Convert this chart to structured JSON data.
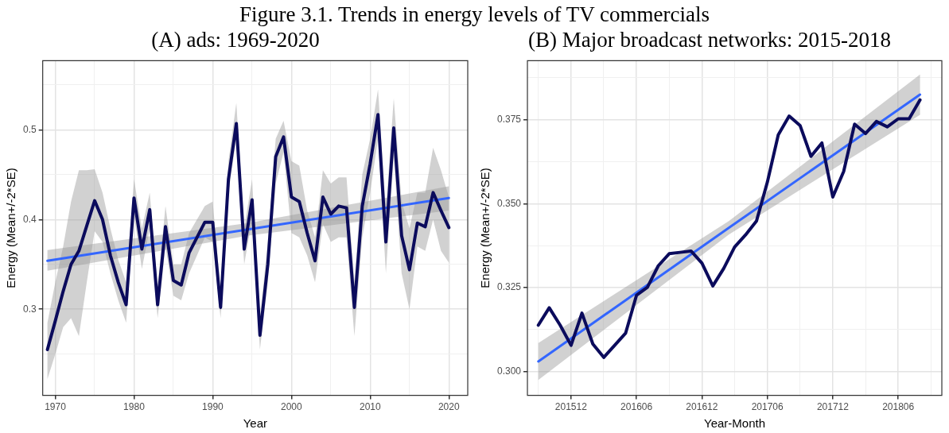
{
  "chart_data": [
    {
      "type": "line",
      "title": "(A) ads: 1969-2020",
      "xlabel": "Year",
      "ylabel": "Energy (Mean+/-2*SE)",
      "annotations": [
        "Figure 3.1.  Trends in energy levels of TV commercials"
      ],
      "x": [
        1969,
        1970,
        1971,
        1972,
        1973,
        1974,
        1975,
        1976,
        1977,
        1978,
        1979,
        1980,
        1981,
        1982,
        1983,
        1984,
        1985,
        1986,
        1987,
        1988,
        1989,
        1990,
        1991,
        1992,
        1993,
        1994,
        1995,
        1996,
        1997,
        1998,
        1999,
        2000,
        2001,
        2002,
        2003,
        2004,
        2005,
        2006,
        2007,
        2008,
        2009,
        2010,
        2011,
        2012,
        2013,
        2014,
        2015,
        2016,
        2017,
        2018,
        2019,
        2020
      ],
      "series": [
        {
          "color": "#0b0b5c",
          "values": [
            0.255,
            0.287,
            0.32,
            0.35,
            0.365,
            0.393,
            0.421,
            0.4,
            0.36,
            0.33,
            0.305,
            0.424,
            0.367,
            0.411,
            0.305,
            0.392,
            0.332,
            0.327,
            0.363,
            0.38,
            0.397,
            0.397,
            0.302,
            0.445,
            0.507,
            0.367,
            0.422,
            0.271,
            0.35,
            0.47,
            0.492,
            0.425,
            0.42,
            0.385,
            0.354,
            0.425,
            0.406,
            0.415,
            0.413,
            0.302,
            0.415,
            0.462,
            0.517,
            0.375,
            0.502,
            0.382,
            0.344,
            0.396,
            0.392,
            0.43,
            0.41,
            0.391
          ],
          "lower": [
            0.222,
            0.25,
            0.28,
            0.29,
            0.27,
            0.33,
            0.387,
            0.375,
            0.34,
            0.31,
            0.285,
            0.405,
            0.345,
            0.39,
            0.29,
            0.37,
            0.315,
            0.31,
            0.34,
            0.36,
            0.38,
            0.375,
            0.29,
            0.43,
            0.49,
            0.35,
            0.4,
            0.255,
            0.33,
            0.44,
            0.475,
            0.385,
            0.38,
            0.36,
            0.33,
            0.395,
            0.375,
            0.38,
            0.38,
            0.27,
            0.38,
            0.43,
            0.49,
            0.34,
            0.47,
            0.34,
            0.3,
            0.37,
            0.365,
            0.4,
            0.365,
            0.352
          ],
          "upper": [
            0.285,
            0.33,
            0.37,
            0.42,
            0.455,
            0.455,
            0.456,
            0.43,
            0.39,
            0.355,
            0.33,
            0.445,
            0.39,
            0.43,
            0.325,
            0.415,
            0.35,
            0.35,
            0.385,
            0.4,
            0.415,
            0.42,
            0.32,
            0.465,
            0.53,
            0.39,
            0.445,
            0.29,
            0.375,
            0.49,
            0.51,
            0.465,
            0.46,
            0.41,
            0.38,
            0.455,
            0.44,
            0.447,
            0.447,
            0.33,
            0.45,
            0.49,
            0.545,
            0.41,
            0.535,
            0.42,
            0.39,
            0.43,
            0.43,
            0.48,
            0.455,
            0.425
          ]
        },
        {
          "type": "line",
          "color": "#3366ff",
          "x": [
            1969,
            1994.5,
            2020
          ],
          "values": [
            0.354,
            0.389,
            0.424
          ],
          "lower": [
            0.343,
            0.382,
            0.41
          ],
          "upper": [
            0.366,
            0.396,
            0.437
          ]
        }
      ],
      "xlim": [
        1968.4,
        2022.4
      ],
      "xticks": [
        1970,
        {
          "value": 1975,
          "label": null
        },
        1980,
        {
          "value": 1985,
          "label": null
        },
        1990,
        {
          "value": 1995,
          "label": null
        },
        2000,
        {
          "value": 2005,
          "label": null
        },
        2010,
        {
          "value": 2015,
          "label": null
        },
        2020
      ],
      "ylim": [
        0.204,
        0.577
      ],
      "yticks": [
        {
          "value": 0.25,
          "label": null
        },
        0.3,
        {
          "value": 0.35,
          "label": null
        },
        0.4,
        {
          "value": 0.45,
          "label": null
        },
        0.5,
        {
          "value": 0.55,
          "label": null
        }
      ],
      "grid": true
    },
    {
      "type": "line",
      "title": "(B) Major broadcast networks: 2015-2018",
      "xlabel": "Year-Month",
      "ylabel": "Energy (Mean+/-2*SE)",
      "x": [
        "2015-09",
        "2015-10",
        "2015-11",
        "2015-12",
        "2016-01",
        "2016-02",
        "2016-03",
        "2016-04",
        "2016-05",
        "2016-06",
        "2016-07",
        "2016-08",
        "2016-09",
        "2016-10",
        "2016-11",
        "2016-12",
        "2017-01",
        "2017-02",
        "2017-03",
        "2017-04",
        "2017-05",
        "2017-06",
        "2017-07",
        "2017-08",
        "2017-09",
        "2017-10",
        "2017-11",
        "2017-12",
        "2018-01",
        "2018-02",
        "2018-03",
        "2018-04",
        "2018-05",
        "2018-06",
        "2018-07",
        "2018-08"
      ],
      "series": [
        {
          "color": "#0b0b5c",
          "values": [
            0.3138,
            0.319,
            0.3138,
            0.3078,
            0.3174,
            0.3082,
            0.3042,
            0.3078,
            0.3114,
            0.3227,
            0.3251,
            0.3315,
            0.3351,
            0.3355,
            0.3359,
            0.3323,
            0.3255,
            0.3307,
            0.3371,
            0.3407,
            0.3448,
            0.3564,
            0.3705,
            0.3761,
            0.3733,
            0.3641,
            0.3681,
            0.352,
            0.3596,
            0.3737,
            0.3709,
            0.3745,
            0.3729,
            0.3753,
            0.3753,
            0.3809
          ]
        },
        {
          "type": "line",
          "color": "#3366ff",
          "x": [
            "2015-09",
            "2017-02-15",
            "2018-08"
          ],
          "values": [
            0.303,
            0.3428,
            0.3825
          ],
          "lower": [
            0.2975,
            0.3408,
            0.3765
          ],
          "upper": [
            0.3085,
            0.3448,
            0.3885
          ]
        }
      ],
      "xlim": [
        "2015-08",
        "2018-10"
      ],
      "xticks": [
        {
          "value": "2015-09",
          "label": null
        },
        {
          "value": "2015-12",
          "label": "201512"
        },
        {
          "value": "2016-03",
          "label": null
        },
        {
          "value": "2016-06",
          "label": "201606"
        },
        {
          "value": "2016-09",
          "label": null
        },
        {
          "value": "2016-12",
          "label": "201612"
        },
        {
          "value": "2017-03",
          "label": null
        },
        {
          "value": "2017-06",
          "label": "201706"
        },
        {
          "value": "2017-09",
          "label": null
        },
        {
          "value": "2017-12",
          "label": "201712"
        },
        {
          "value": "2018-03",
          "label": null
        },
        {
          "value": "2018-06",
          "label": "201806"
        },
        {
          "value": "2018-09",
          "label": null
        }
      ],
      "ylim": [
        0.2929,
        0.3926
      ],
      "yticks": [
        {
          "value": 0.3,
          "label": "0.300"
        },
        {
          "value": 0.3125,
          "label": null
        },
        {
          "value": 0.325,
          "label": "0.325"
        },
        {
          "value": 0.3375,
          "label": null
        },
        {
          "value": 0.35,
          "label": "0.350"
        },
        {
          "value": 0.3625,
          "label": null
        },
        {
          "value": 0.375,
          "label": "0.375"
        },
        {
          "value": 0.3875,
          "label": null
        }
      ],
      "grid": true
    }
  ]
}
